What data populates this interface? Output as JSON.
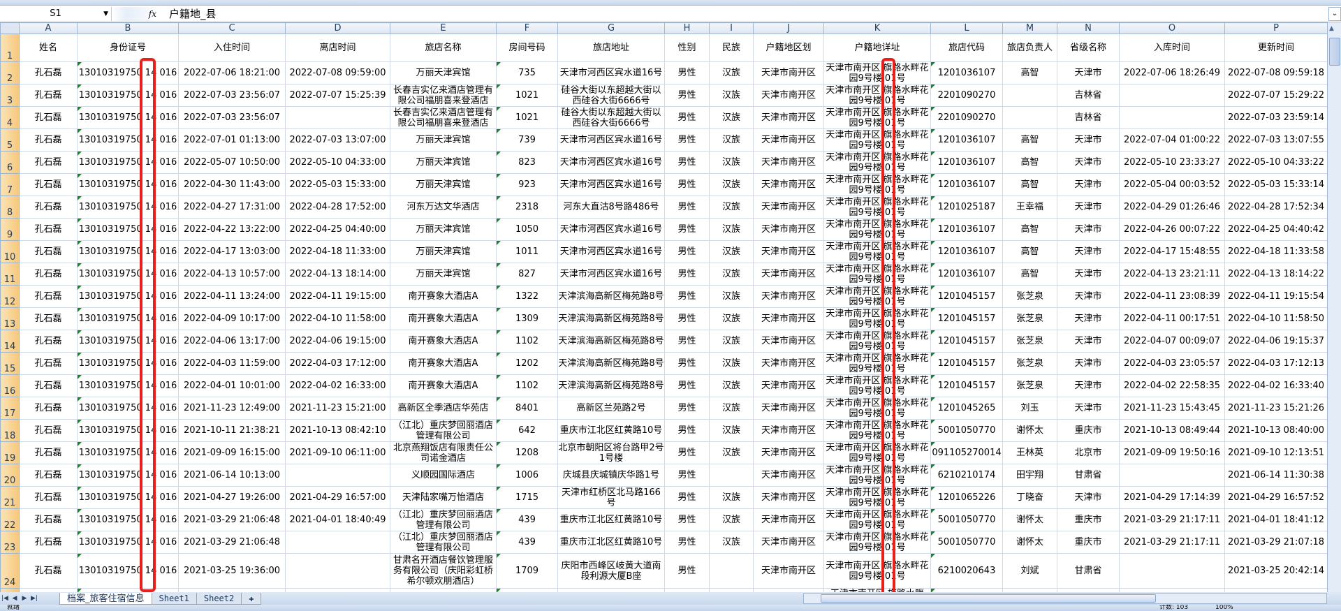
{
  "formula_bar": {
    "name_box": "S1",
    "fx": "fx",
    "formula": "户籍地_县"
  },
  "columns": [
    "A",
    "B",
    "C",
    "D",
    "E",
    "F",
    "G",
    "H",
    "I",
    "J",
    "K",
    "L",
    "M",
    "N",
    "O",
    "P"
  ],
  "headers": [
    "姓名",
    "身份证号",
    "入住时间",
    "离店时间",
    "旅店名称",
    "房间号码",
    "旅店地址",
    "性别",
    "民族",
    "户籍地区划",
    "户籍地详址",
    "旅店代码",
    "旅店负责人",
    "省级名称",
    "入库时间",
    "更新时间"
  ],
  "rows": [
    [
      "孔石磊",
      "13010319750 14 016",
      "2022-07-06 18:21:00",
      "2022-07-08 09:59:00",
      "万丽天津宾馆",
      "735",
      "天津市河西区宾水道16号",
      "男性",
      "汉族",
      "天津市南开区",
      "天津市南开区 旗路水畔花园9号楼 01号",
      "1201036107",
      "高智",
      "天津市",
      "2022-07-06 18:26:49",
      "2022-07-08 09:59:18"
    ],
    [
      "孔石磊",
      "13010319750 14 016",
      "2022-07-03 23:56:07",
      "2022-07-07 15:25:39",
      "长春吉实亿来酒店管理有限公司福朋喜来登酒店",
      "1021",
      "硅谷大街以东超越大街以西硅谷大街6666号",
      "男性",
      "汉族",
      "天津市南开区",
      "天津市南开区 旗路水畔花园9号楼 01号",
      "2201090270",
      "",
      "吉林省",
      "",
      "2022-07-07 15:29:22"
    ],
    [
      "孔石磊",
      "13010319750 14 016",
      "2022-07-03 23:56:07",
      "",
      "长春吉实亿来酒店管理有限公司福朋喜来登酒店",
      "1021",
      "硅谷大街以东超越大街以西硅谷大街6666号",
      "男性",
      "汉族",
      "天津市南开区",
      "天津市南开区 旗路水畔花园9号楼 01号",
      "2201090270",
      "",
      "吉林省",
      "",
      "2022-07-03 23:59:14"
    ],
    [
      "孔石磊",
      "13010319750 14 016",
      "2022-07-01 01:13:00",
      "2022-07-03 13:07:00",
      "万丽天津宾馆",
      "739",
      "天津市河西区宾水道16号",
      "男性",
      "汉族",
      "天津市南开区",
      "天津市南开区 旗路水畔花园9号楼 01号",
      "1201036107",
      "高智",
      "天津市",
      "2022-07-04 01:00:22",
      "2022-07-03 13:07:55"
    ],
    [
      "孔石磊",
      "13010319750 14 016",
      "2022-05-07 10:50:00",
      "2022-05-10 04:33:00",
      "万丽天津宾馆",
      "823",
      "天津市河西区宾水道16号",
      "男性",
      "汉族",
      "天津市南开区",
      "天津市南开区 旗路水畔花园9号楼 01号",
      "1201036107",
      "高智",
      "天津市",
      "2022-05-10 23:33:27",
      "2022-05-10 04:33:22"
    ],
    [
      "孔石磊",
      "13010319750 14 016",
      "2022-04-30 11:43:00",
      "2022-05-03 15:33:00",
      "万丽天津宾馆",
      "923",
      "天津市河西区宾水道16号",
      "男性",
      "汉族",
      "天津市南开区",
      "天津市南开区 旗路水畔花园9号楼 01号",
      "1201036107",
      "高智",
      "天津市",
      "2022-05-04 00:03:52",
      "2022-05-03 15:33:14"
    ],
    [
      "孔石磊",
      "13010319750 14 016",
      "2022-04-27 17:31:00",
      "2022-04-28 17:52:00",
      "河东万达文华酒店",
      "2318",
      "河东大直沽8号路486号",
      "男性",
      "汉族",
      "天津市南开区",
      "天津市南开区 旗路水畔花园9号楼 01号",
      "1201025187",
      "王幸福",
      "天津市",
      "2022-04-29 01:26:46",
      "2022-04-28 17:52:34"
    ],
    [
      "孔石磊",
      "13010319750 14 016",
      "2022-04-22 13:22:00",
      "2022-04-25 04:40:00",
      "万丽天津宾馆",
      "1050",
      "天津市河西区宾水道16号",
      "男性",
      "汉族",
      "天津市南开区",
      "天津市南开区 旗路水畔花园9号楼 01号",
      "1201036107",
      "高智",
      "天津市",
      "2022-04-26 00:07:22",
      "2022-04-25 04:40:42"
    ],
    [
      "孔石磊",
      "13010319750 14 016",
      "2022-04-17 13:03:00",
      "2022-04-18 11:33:00",
      "万丽天津宾馆",
      "1011",
      "天津市河西区宾水道16号",
      "男性",
      "汉族",
      "天津市南开区",
      "天津市南开区 旗路水畔花园9号楼 01号",
      "1201036107",
      "高智",
      "天津市",
      "2022-04-17 15:48:55",
      "2022-04-18 11:33:58"
    ],
    [
      "孔石磊",
      "13010319750 14 016",
      "2022-04-13 10:57:00",
      "2022-04-13 18:14:00",
      "万丽天津宾馆",
      "827",
      "天津市河西区宾水道16号",
      "男性",
      "汉族",
      "天津市南开区",
      "天津市南开区 旗路水畔花园9号楼 01号",
      "1201036107",
      "高智",
      "天津市",
      "2022-04-13 23:21:11",
      "2022-04-13 18:14:22"
    ],
    [
      "孔石磊",
      "13010319750 14 016",
      "2022-04-11 13:24:00",
      "2022-04-11 19:15:00",
      "南开赛象大酒店A",
      "1322",
      "天津滨海高新区梅苑路8号",
      "男性",
      "汉族",
      "天津市南开区",
      "天津市南开区 旗路水畔花园9号楼 01号",
      "1201045157",
      "张芝泉",
      "天津市",
      "2022-04-11 23:08:39",
      "2022-04-11 19:15:54"
    ],
    [
      "孔石磊",
      "13010319750 14 016",
      "2022-04-09 10:17:00",
      "2022-04-10 11:58:00",
      "南开赛象大酒店A",
      "1309",
      "天津滨海高新区梅苑路8号",
      "男性",
      "汉族",
      "天津市南开区",
      "天津市南开区 旗路水畔花园9号楼 01号",
      "1201045157",
      "张芝泉",
      "天津市",
      "2022-04-11 00:17:51",
      "2022-04-10 11:58:50"
    ],
    [
      "孔石磊",
      "13010319750 14 016",
      "2022-04-06 13:17:00",
      "2022-04-06 19:15:00",
      "南开赛象大酒店A",
      "1102",
      "天津滨海高新区梅苑路8号",
      "男性",
      "汉族",
      "天津市南开区",
      "天津市南开区 旗路水畔花园9号楼 01号",
      "1201045157",
      "张芝泉",
      "天津市",
      "2022-04-07 00:09:07",
      "2022-04-06 19:15:37"
    ],
    [
      "孔石磊",
      "13010319750 14 016",
      "2022-04-03 11:59:00",
      "2022-04-03 17:12:00",
      "南开赛象大酒店A",
      "1202",
      "天津滨海高新区梅苑路8号",
      "男性",
      "汉族",
      "天津市南开区",
      "天津市南开区 旗路水畔花园9号楼 01号",
      "1201045157",
      "张芝泉",
      "天津市",
      "2022-04-03 23:05:57",
      "2022-04-03 17:12:13"
    ],
    [
      "孔石磊",
      "13010319750 14 016",
      "2022-04-01 10:01:00",
      "2022-04-02 16:33:00",
      "南开赛象大酒店A",
      "1102",
      "天津滨海高新区梅苑路8号",
      "男性",
      "汉族",
      "天津市南开区",
      "天津市南开区 旗路水畔花园9号楼 01号",
      "1201045157",
      "张芝泉",
      "天津市",
      "2022-04-02 22:58:35",
      "2022-04-02 16:33:40"
    ],
    [
      "孔石磊",
      "13010319750 14 016",
      "2021-11-23 12:49:00",
      "2021-11-23 15:21:00",
      "高新区全季酒店华苑店",
      "8401",
      "高新区兰苑路2号",
      "男性",
      "汉族",
      "天津市南开区",
      "天津市南开区 旗路水畔花园9号楼 01号",
      "1201045265",
      "刘玉",
      "天津市",
      "2021-11-23 15:43:45",
      "2021-11-23 15:21:26"
    ],
    [
      "孔石磊",
      "13010319750 14 016",
      "2021-10-11 21:38:21",
      "2021-10-13 08:42:10",
      "（江北）重庆梦回丽酒店管理有限公司",
      "642",
      "重庆市江北区红黄路10号",
      "男性",
      "汉族",
      "天津市南开区",
      "天津市南开区 旗路水畔花园9号楼 01号",
      "5001050770",
      "谢怀太",
      "重庆市",
      "2021-10-13 08:49:44",
      "2021-10-13 08:40:00"
    ],
    [
      "孔石磊",
      "13010319750 14 016",
      "2021-09-09 16:15:00",
      "2021-09-10 06:11:00",
      "北京燕翔饭店有限责任公司诺金酒店",
      "1208",
      "北京市朝阳区将台路甲2号1号楼",
      "男性",
      "汉族",
      "天津市南开区",
      "天津市南开区 旗路水畔花园9号楼 01号",
      "091105270014",
      "王林英",
      "北京市",
      "2021-09-09 19:50:16",
      "2021-09-10 12:13:51"
    ],
    [
      "孔石磊",
      "13010319750 14 016",
      "2021-06-14 10:13:00",
      "",
      "义顺园国际酒店",
      "1006",
      "庆城县庆城镇庆华路1号",
      "男性",
      "",
      "天津市南开区",
      "天津市南开区 旗路水畔花园9号楼 01号",
      "6210210174",
      "田宇翔",
      "甘肃省",
      "",
      "2021-06-14 11:30:38"
    ],
    [
      "孔石磊",
      "13010319750 14 016",
      "2021-04-27 19:26:00",
      "2021-04-29 16:57:00",
      "天津陆家嘴万怡酒店",
      "1715",
      "天津市红桥区北马路166号",
      "男性",
      "汉族",
      "天津市南开区",
      "天津市南开区 旗路水畔花园9号楼 01号",
      "1201065226",
      "丁晓奋",
      "天津市",
      "2021-04-29 17:14:39",
      "2021-04-29 16:57:52"
    ],
    [
      "孔石磊",
      "13010319750 14 016",
      "2021-03-29 21:06:48",
      "2021-04-01 18:40:49",
      "（江北）重庆梦回丽酒店管理有限公司",
      "439",
      "重庆市江北区红黄路10号",
      "男性",
      "汉族",
      "天津市南开区",
      "天津市南开区 旗路水畔花园9号楼 01号",
      "5001050770",
      "谢怀太",
      "重庆市",
      "2021-03-29 21:17:11",
      "2021-04-01 18:41:12"
    ],
    [
      "孔石磊",
      "13010319750 14 016",
      "2021-03-29 21:06:48",
      "",
      "（江北）重庆梦回丽酒店管理有限公司",
      "439",
      "重庆市江北区红黄路10号",
      "男性",
      "汉族",
      "天津市南开区",
      "天津市南开区 旗路水畔花园9号楼 01号",
      "5001050770",
      "谢怀太",
      "重庆市",
      "2021-03-29 21:17:11",
      "2021-03-29 21:07:18"
    ],
    [
      "孔石磊",
      "13010319750 14 016",
      "2021-03-25 19:36:00",
      "",
      "甘肃名开酒店餐饮管理服务有限公司（庆阳彩虹桥希尔顿欢朋酒店）",
      "1709",
      "庆阳市西峰区岐黄大道南段利源大厦B座",
      "男性",
      "",
      "天津市南开区",
      "天津市南开区 旗路水畔花园9号楼 01号",
      "6210020643",
      "刘斌",
      "甘肃省",
      "",
      "2021-03-25 20:42:14"
    ],
    [
      "",
      "",
      "",
      "",
      "",
      "",
      "",
      "",
      "",
      "",
      "天津市南开区 旗路水畔",
      "",
      "",
      "",
      "",
      ""
    ]
  ],
  "sheet_tabs": [
    "档案_旅客住宿信息",
    "Sheet1",
    "Sheet2"
  ],
  "active_tab": 0,
  "status": {
    "ready": "就绪",
    "count": "计数: 103",
    "zoom": "100%"
  },
  "colors": {
    "highlight_box": "#e8201c",
    "row_header": "#f6c77b",
    "col_header": "#dde6f2",
    "error_triangle": "#168a16"
  }
}
